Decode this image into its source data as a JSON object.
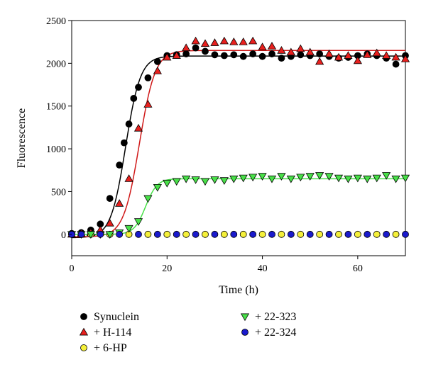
{
  "chart_data": {
    "type": "scatter",
    "title": "",
    "xlabel": "Time (h)",
    "ylabel": "Fluorescence",
    "xlim": [
      0,
      70
    ],
    "ylim": [
      -250,
      2500
    ],
    "xticks": [
      0,
      20,
      40,
      60
    ],
    "yticks": [
      0,
      500,
      1000,
      1500,
      2000,
      2500
    ],
    "grid": false,
    "legend_position": "below",
    "series": [
      {
        "name": "Synuclein",
        "marker": "circle",
        "color": "#000000",
        "x": [
          0,
          2,
          4,
          6,
          8,
          10,
          11,
          12,
          13,
          14,
          16,
          18,
          20,
          22,
          24,
          26,
          28,
          30,
          32,
          34,
          36,
          38,
          40,
          42,
          44,
          46,
          48,
          50,
          52,
          54,
          56,
          58,
          60,
          62,
          64,
          66,
          68,
          70
        ],
        "y": [
          10,
          20,
          50,
          120,
          420,
          810,
          1070,
          1290,
          1590,
          1720,
          1830,
          2020,
          2090,
          2100,
          2110,
          2180,
          2140,
          2100,
          2090,
          2100,
          2080,
          2110,
          2080,
          2110,
          2060,
          2080,
          2100,
          2090,
          2110,
          2080,
          2060,
          2070,
          2090,
          2110,
          2090,
          2060,
          1990,
          2090
        ]
      },
      {
        "name": "+ H-114",
        "marker": "triangle-up",
        "color": "#e8201e",
        "x": [
          0,
          2,
          4,
          6,
          8,
          10,
          12,
          14,
          16,
          18,
          20,
          22,
          24,
          26,
          28,
          30,
          32,
          34,
          36,
          38,
          40,
          42,
          44,
          46,
          48,
          50,
          52,
          54,
          56,
          58,
          60,
          62,
          64,
          66,
          68,
          70
        ],
        "y": [
          0,
          10,
          20,
          50,
          130,
          360,
          650,
          1240,
          1520,
          1910,
          2070,
          2090,
          2180,
          2260,
          2230,
          2240,
          2260,
          2250,
          2250,
          2260,
          2190,
          2200,
          2150,
          2130,
          2170,
          2130,
          2020,
          2110,
          2070,
          2090,
          2030,
          2100,
          2120,
          2090,
          2070,
          2050
        ]
      },
      {
        "name": "+ 6-HP",
        "marker": "circle",
        "color": "#f5f03a",
        "x": [
          0,
          4,
          8,
          12,
          16,
          20,
          24,
          28,
          32,
          36,
          40,
          44,
          48,
          52,
          56,
          60,
          64,
          68
        ],
        "y": [
          0,
          0,
          0,
          0,
          0,
          0,
          0,
          0,
          0,
          0,
          0,
          0,
          0,
          0,
          0,
          0,
          0,
          0
        ]
      },
      {
        "name": "+ 22-323",
        "marker": "triangle-down",
        "color": "#48e048",
        "x": [
          0,
          2,
          4,
          6,
          8,
          10,
          12,
          14,
          16,
          18,
          20,
          22,
          24,
          26,
          28,
          30,
          32,
          34,
          36,
          38,
          40,
          42,
          44,
          46,
          48,
          50,
          52,
          54,
          56,
          58,
          60,
          62,
          64,
          66,
          68,
          70
        ],
        "y": [
          0,
          0,
          0,
          0,
          0,
          20,
          70,
          150,
          420,
          550,
          600,
          620,
          650,
          640,
          620,
          640,
          630,
          650,
          660,
          670,
          680,
          650,
          680,
          650,
          670,
          680,
          690,
          680,
          660,
          650,
          660,
          650,
          660,
          690,
          650,
          660
        ]
      },
      {
        "name": "+ 22-324",
        "marker": "circle",
        "color": "#1a1acc",
        "x": [
          0,
          2,
          6,
          10,
          14,
          18,
          22,
          26,
          30,
          34,
          38,
          42,
          46,
          50,
          54,
          58,
          62,
          66,
          70
        ],
        "y": [
          0,
          0,
          0,
          0,
          0,
          0,
          0,
          0,
          0,
          0,
          0,
          0,
          0,
          0,
          0,
          0,
          0,
          0,
          0
        ]
      }
    ],
    "fits": [
      {
        "name": "Synuclein",
        "color": "#000000",
        "y0": -40,
        "top": 2085,
        "mid": 11.3,
        "rate": 1.55
      },
      {
        "name": "+ H-114",
        "color": "#d01818",
        "y0": -30,
        "top": 2150,
        "mid": 14.2,
        "rate": 1.65
      },
      {
        "name": "+ 22-323",
        "color": "#48e048",
        "y0": 0,
        "top": 650,
        "mid": 15.5,
        "rate": 1.2
      }
    ]
  }
}
